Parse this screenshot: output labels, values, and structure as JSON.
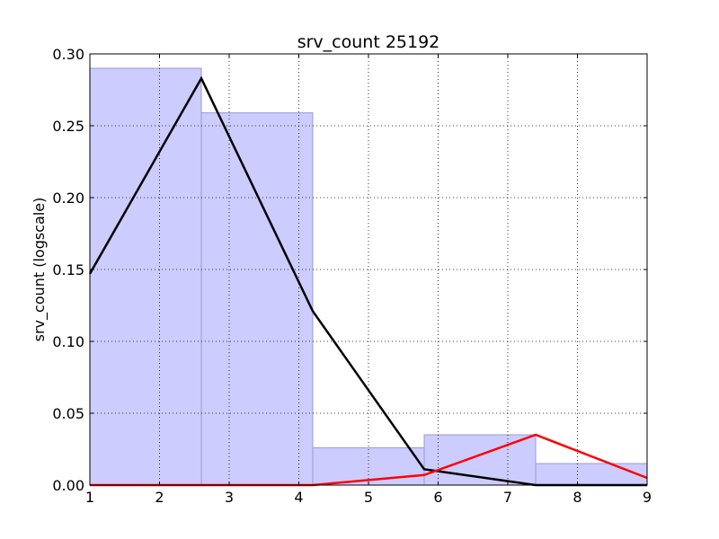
{
  "chart_data": {
    "type": "bar",
    "title": "srv_count 25192",
    "xlabel": "",
    "ylabel": "srv_count (logscale)",
    "xlim": [
      1,
      9
    ],
    "ylim": [
      0,
      0.3
    ],
    "grid": true,
    "x_ticks": [
      "1",
      "2",
      "3",
      "4",
      "5",
      "6",
      "7",
      "8",
      "9"
    ],
    "y_ticks": [
      "0.00",
      "0.05",
      "0.10",
      "0.15",
      "0.20",
      "0.25",
      "0.30"
    ],
    "bins": [
      {
        "x0": 1.0,
        "x1": 2.6,
        "value": 0.29
      },
      {
        "x0": 2.6,
        "x1": 4.2,
        "value": 0.259
      },
      {
        "x0": 4.2,
        "x1": 5.8,
        "value": 0.026
      },
      {
        "x0": 5.8,
        "x1": 7.4,
        "value": 0.035
      },
      {
        "x0": 7.4,
        "x1": 9.0,
        "value": 0.015
      }
    ],
    "series": [
      {
        "color": "#000000",
        "x": [
          1.0,
          2.6,
          4.2,
          5.8,
          7.4,
          9.0
        ],
        "y": [
          0.147,
          0.283,
          0.121,
          0.011,
          0.0,
          0.0
        ]
      },
      {
        "color": "#ff0000",
        "x": [
          1.0,
          2.6,
          4.2,
          5.8,
          7.4,
          9.0
        ],
        "y": [
          0.0,
          0.0,
          0.0,
          0.007,
          0.035,
          0.005
        ]
      }
    ],
    "bar_color": "#ccccff",
    "bar_edge": "#9a9ad0"
  }
}
